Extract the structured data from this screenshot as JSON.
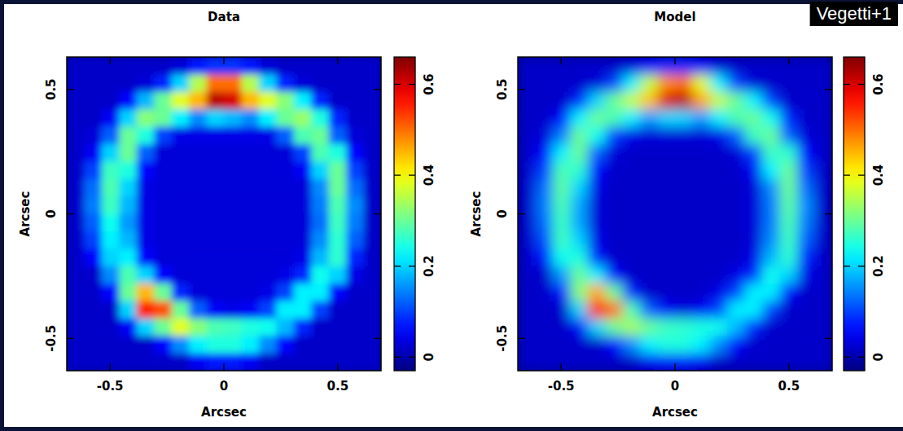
{
  "chart_data": [
    {
      "type": "heatmap",
      "title": "Data",
      "xlabel": "Arcsec",
      "ylabel": "Arcsec",
      "xlim": [
        -0.69,
        0.69
      ],
      "ylim": [
        -0.63,
        0.63
      ],
      "xticks": [
        -0.5,
        0,
        0.5
      ],
      "yticks": [
        -0.5,
        0,
        0.5
      ],
      "colorbar_range": [
        -0.03,
        0.66
      ],
      "colorbar_ticks": [
        0,
        0.2,
        0.4,
        0.6
      ],
      "cells": [
        [
          0.02,
          0.02,
          0.02,
          0.02,
          0.02,
          0.02,
          0.03,
          0.07,
          0.09,
          0.09,
          0.07,
          0.03,
          0.02,
          0.02,
          0.02,
          0.02,
          0.02,
          0.02
        ],
        [
          0.02,
          0.02,
          0.02,
          0.02,
          0.03,
          0.08,
          0.2,
          0.35,
          0.5,
          0.5,
          0.35,
          0.2,
          0.08,
          0.03,
          0.02,
          0.02,
          0.02,
          0.02
        ],
        [
          0.02,
          0.02,
          0.02,
          0.06,
          0.18,
          0.3,
          0.38,
          0.45,
          0.62,
          0.6,
          0.45,
          0.38,
          0.32,
          0.22,
          0.08,
          0.02,
          0.02,
          0.02
        ],
        [
          0.02,
          0.02,
          0.05,
          0.2,
          0.32,
          0.3,
          0.22,
          0.15,
          0.2,
          0.18,
          0.15,
          0.22,
          0.3,
          0.33,
          0.25,
          0.08,
          0.02,
          0.02
        ],
        [
          0.02,
          0.03,
          0.12,
          0.3,
          0.25,
          0.1,
          0.04,
          0.04,
          0.04,
          0.04,
          0.04,
          0.04,
          0.12,
          0.28,
          0.3,
          0.12,
          0.03,
          0.02
        ],
        [
          0.02,
          0.05,
          0.2,
          0.3,
          0.12,
          0.03,
          0.03,
          0.03,
          0.03,
          0.03,
          0.03,
          0.03,
          0.03,
          0.1,
          0.28,
          0.25,
          0.06,
          0.02
        ],
        [
          0.02,
          0.1,
          0.27,
          0.25,
          0.06,
          0.03,
          0.03,
          0.03,
          0.03,
          0.03,
          0.03,
          0.03,
          0.03,
          0.05,
          0.2,
          0.3,
          0.1,
          0.02
        ],
        [
          0.02,
          0.13,
          0.28,
          0.2,
          0.04,
          0.03,
          0.03,
          0.03,
          0.03,
          0.03,
          0.03,
          0.03,
          0.03,
          0.03,
          0.15,
          0.3,
          0.13,
          0.02
        ],
        [
          0.02,
          0.14,
          0.27,
          0.18,
          0.04,
          0.03,
          0.03,
          0.03,
          0.03,
          0.03,
          0.03,
          0.03,
          0.03,
          0.03,
          0.14,
          0.28,
          0.15,
          0.02
        ],
        [
          0.02,
          0.12,
          0.24,
          0.16,
          0.04,
          0.03,
          0.03,
          0.03,
          0.03,
          0.03,
          0.03,
          0.03,
          0.03,
          0.03,
          0.13,
          0.27,
          0.14,
          0.02
        ],
        [
          0.02,
          0.1,
          0.22,
          0.18,
          0.04,
          0.03,
          0.03,
          0.03,
          0.03,
          0.03,
          0.03,
          0.03,
          0.03,
          0.03,
          0.15,
          0.26,
          0.12,
          0.02
        ],
        [
          0.02,
          0.06,
          0.2,
          0.22,
          0.06,
          0.03,
          0.03,
          0.03,
          0.03,
          0.03,
          0.03,
          0.03,
          0.03,
          0.04,
          0.18,
          0.26,
          0.08,
          0.02
        ],
        [
          0.02,
          0.02,
          0.15,
          0.28,
          0.2,
          0.06,
          0.03,
          0.03,
          0.03,
          0.03,
          0.03,
          0.03,
          0.04,
          0.08,
          0.24,
          0.2,
          0.04,
          0.02
        ],
        [
          0.02,
          0.02,
          0.06,
          0.3,
          0.45,
          0.3,
          0.08,
          0.03,
          0.03,
          0.03,
          0.03,
          0.04,
          0.1,
          0.22,
          0.22,
          0.06,
          0.02,
          0.02
        ],
        [
          0.02,
          0.02,
          0.02,
          0.2,
          0.55,
          0.52,
          0.3,
          0.12,
          0.05,
          0.04,
          0.05,
          0.1,
          0.22,
          0.22,
          0.1,
          0.02,
          0.02,
          0.02
        ],
        [
          0.02,
          0.02,
          0.02,
          0.05,
          0.2,
          0.3,
          0.38,
          0.32,
          0.28,
          0.27,
          0.25,
          0.24,
          0.18,
          0.08,
          0.02,
          0.02,
          0.02,
          0.02
        ],
        [
          0.02,
          0.02,
          0.02,
          0.02,
          0.02,
          0.06,
          0.15,
          0.22,
          0.25,
          0.25,
          0.22,
          0.15,
          0.06,
          0.02,
          0.02,
          0.02,
          0.02,
          0.02
        ],
        [
          0.02,
          0.02,
          0.02,
          0.02,
          0.02,
          0.02,
          0.02,
          0.05,
          0.07,
          0.07,
          0.05,
          0.02,
          0.02,
          0.02,
          0.02,
          0.02,
          0.02,
          0.02
        ]
      ]
    },
    {
      "type": "heatmap",
      "title": "Model",
      "xlabel": "Arcsec",
      "ylabel": "Arcsec",
      "xlim": [
        -0.69,
        0.69
      ],
      "ylim": [
        -0.63,
        0.63
      ],
      "xticks": [
        -0.5,
        0,
        0.5
      ],
      "yticks": [
        -0.5,
        0,
        0.5
      ],
      "colorbar_range": [
        -0.03,
        0.66
      ],
      "colorbar_ticks": [
        0,
        0.2,
        0.4,
        0.6
      ],
      "annotations": [
        "Vegetti+1"
      ],
      "cells": [
        [
          0.02,
          0.02,
          0.02,
          0.02,
          0.02,
          0.02,
          0.03,
          0.06,
          0.08,
          0.08,
          0.06,
          0.03,
          0.02,
          0.02,
          0.02,
          0.02,
          0.02,
          0.02
        ],
        [
          0.02,
          0.02,
          0.02,
          0.02,
          0.03,
          0.1,
          0.22,
          0.36,
          0.48,
          0.5,
          0.38,
          0.22,
          0.1,
          0.03,
          0.02,
          0.02,
          0.02,
          0.02
        ],
        [
          0.02,
          0.02,
          0.02,
          0.08,
          0.2,
          0.3,
          0.36,
          0.44,
          0.6,
          0.62,
          0.46,
          0.36,
          0.3,
          0.22,
          0.1,
          0.02,
          0.02,
          0.02
        ],
        [
          0.02,
          0.02,
          0.06,
          0.22,
          0.3,
          0.28,
          0.22,
          0.16,
          0.2,
          0.2,
          0.16,
          0.22,
          0.28,
          0.3,
          0.24,
          0.08,
          0.02,
          0.02
        ],
        [
          0.02,
          0.03,
          0.14,
          0.3,
          0.24,
          0.1,
          0.04,
          0.03,
          0.03,
          0.03,
          0.03,
          0.04,
          0.12,
          0.27,
          0.3,
          0.12,
          0.03,
          0.02
        ],
        [
          0.02,
          0.06,
          0.22,
          0.3,
          0.12,
          0.03,
          0.02,
          0.02,
          0.02,
          0.02,
          0.02,
          0.02,
          0.03,
          0.1,
          0.27,
          0.26,
          0.06,
          0.02
        ],
        [
          0.02,
          0.1,
          0.28,
          0.26,
          0.06,
          0.02,
          0.02,
          0.02,
          0.02,
          0.02,
          0.02,
          0.02,
          0.02,
          0.05,
          0.22,
          0.3,
          0.1,
          0.02
        ],
        [
          0.02,
          0.13,
          0.29,
          0.2,
          0.04,
          0.02,
          0.02,
          0.02,
          0.02,
          0.02,
          0.02,
          0.02,
          0.02,
          0.03,
          0.15,
          0.3,
          0.13,
          0.02
        ],
        [
          0.02,
          0.14,
          0.28,
          0.17,
          0.03,
          0.02,
          0.02,
          0.02,
          0.02,
          0.02,
          0.02,
          0.02,
          0.02,
          0.03,
          0.14,
          0.29,
          0.15,
          0.02
        ],
        [
          0.02,
          0.13,
          0.27,
          0.17,
          0.03,
          0.02,
          0.02,
          0.02,
          0.02,
          0.02,
          0.02,
          0.02,
          0.02,
          0.03,
          0.14,
          0.28,
          0.14,
          0.02
        ],
        [
          0.02,
          0.11,
          0.27,
          0.2,
          0.04,
          0.02,
          0.02,
          0.02,
          0.02,
          0.02,
          0.02,
          0.02,
          0.02,
          0.03,
          0.15,
          0.27,
          0.12,
          0.02
        ],
        [
          0.02,
          0.07,
          0.24,
          0.25,
          0.07,
          0.02,
          0.02,
          0.02,
          0.02,
          0.02,
          0.02,
          0.02,
          0.02,
          0.04,
          0.18,
          0.26,
          0.08,
          0.02
        ],
        [
          0.02,
          0.02,
          0.16,
          0.3,
          0.22,
          0.06,
          0.02,
          0.02,
          0.02,
          0.02,
          0.02,
          0.02,
          0.04,
          0.08,
          0.24,
          0.2,
          0.04,
          0.02
        ],
        [
          0.02,
          0.02,
          0.07,
          0.32,
          0.46,
          0.3,
          0.08,
          0.02,
          0.02,
          0.02,
          0.02,
          0.04,
          0.1,
          0.22,
          0.22,
          0.06,
          0.02,
          0.02
        ],
        [
          0.02,
          0.02,
          0.02,
          0.2,
          0.56,
          0.5,
          0.28,
          0.12,
          0.05,
          0.03,
          0.05,
          0.1,
          0.22,
          0.22,
          0.1,
          0.02,
          0.02,
          0.02
        ],
        [
          0.02,
          0.02,
          0.02,
          0.05,
          0.2,
          0.3,
          0.34,
          0.3,
          0.27,
          0.26,
          0.25,
          0.24,
          0.18,
          0.08,
          0.02,
          0.02,
          0.02,
          0.02
        ],
        [
          0.02,
          0.02,
          0.02,
          0.02,
          0.02,
          0.06,
          0.15,
          0.22,
          0.25,
          0.25,
          0.22,
          0.15,
          0.06,
          0.02,
          0.02,
          0.02,
          0.02,
          0.02
        ],
        [
          0.02,
          0.02,
          0.02,
          0.02,
          0.02,
          0.02,
          0.02,
          0.05,
          0.07,
          0.07,
          0.05,
          0.02,
          0.02,
          0.02,
          0.02,
          0.02,
          0.02,
          0.02
        ]
      ]
    }
  ]
}
